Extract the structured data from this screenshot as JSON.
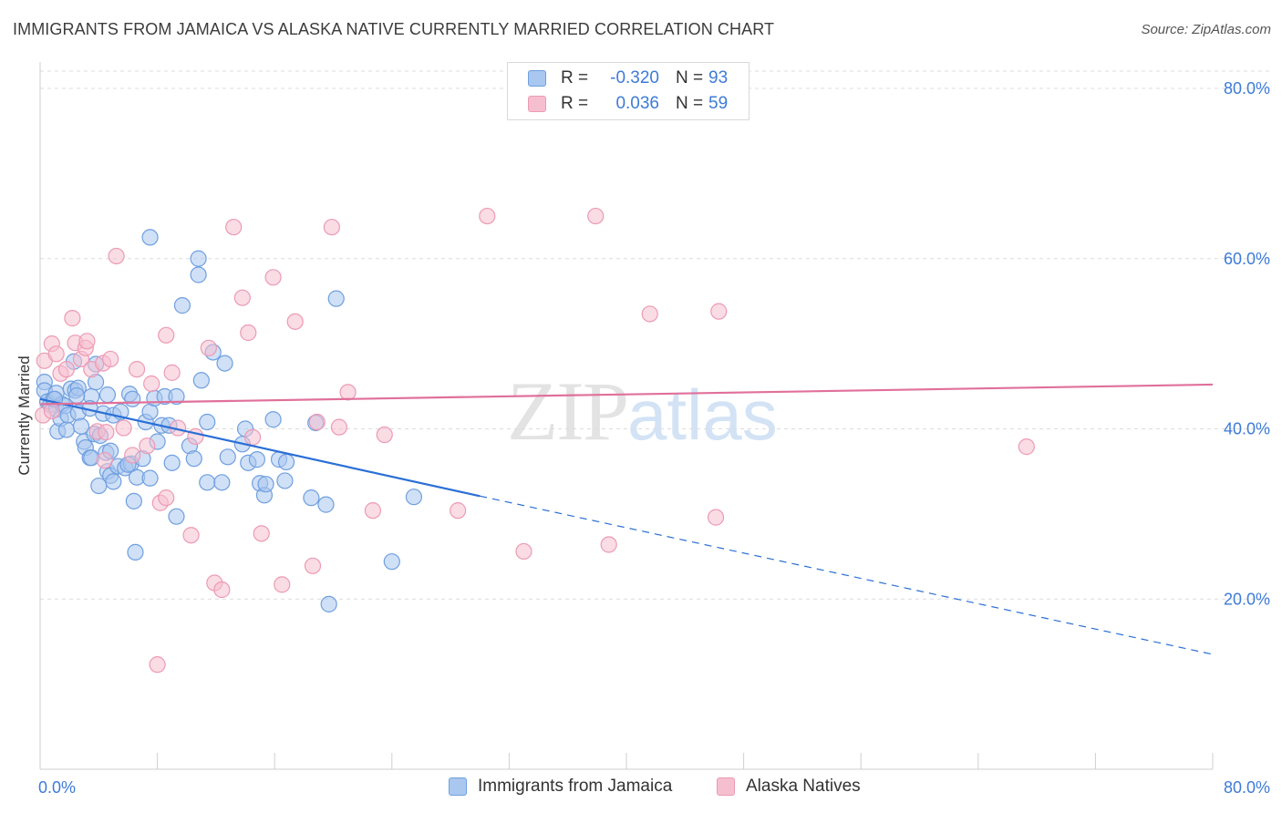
{
  "title": "IMMIGRANTS FROM JAMAICA VS ALASKA NATIVE CURRENTLY MARRIED CORRELATION CHART",
  "source": "Source: ZipAtlas.com",
  "watermark": {
    "zip": "ZIP",
    "atlas": "atlas"
  },
  "legend": {
    "rows": [
      {
        "r_label": "R =",
        "r_value": "-0.320",
        "n_label": "N =",
        "n_value": "93"
      },
      {
        "r_label": "R =",
        "r_value": "0.036",
        "n_label": "N =",
        "n_value": "59"
      }
    ]
  },
  "colors": {
    "blue_fill": "#a9c7ef",
    "blue_stroke": "#6f9fe0",
    "blue_line": "#2a6fd6",
    "pink_fill": "#f6bfd0",
    "pink_stroke": "#ec9ab5",
    "pink_line": "#e0709a",
    "grid": "#dcdcdc",
    "axis_text": "#3d7bd8"
  },
  "chart_data": {
    "type": "scatter",
    "title": "IMMIGRANTS FROM JAMAICA VS ALASKA NATIVE CURRENTLY MARRIED CORRELATION CHART",
    "xlabel": "",
    "ylabel": "Currently Married",
    "xlim": [
      0,
      80
    ],
    "ylim": [
      0,
      80
    ],
    "x_tick_labels": [
      "0.0%",
      "80.0%"
    ],
    "y_ticks": [
      20,
      40,
      60,
      80
    ],
    "y_tick_labels": [
      "20.0%",
      "40.0%",
      "60.0%",
      "80.0%"
    ],
    "series": [
      {
        "name": "Immigrants from Jamaica",
        "color": "#a9c7ef",
        "trend": {
          "x0": 0,
          "y0": 43.5,
          "x1": 30,
          "y1": 32.1,
          "dash_to_x": 80,
          "dash_to_y": 13.5
        },
        "points": [
          [
            0.3,
            45.5
          ],
          [
            0.3,
            44.5
          ],
          [
            0.5,
            43.2
          ],
          [
            0.7,
            42.8
          ],
          [
            0.9,
            43.5
          ],
          [
            1.1,
            42.3
          ],
          [
            1.1,
            44.2
          ],
          [
            1.2,
            39.7
          ],
          [
            1.4,
            41.2
          ],
          [
            1.5,
            42.9
          ],
          [
            1.7,
            42.7
          ],
          [
            1.8,
            39.9
          ],
          [
            1.9,
            41.6
          ],
          [
            2.1,
            44.7
          ],
          [
            2.3,
            47.9
          ],
          [
            2.4,
            44.5
          ],
          [
            2.6,
            41.9
          ],
          [
            2.6,
            44.8
          ],
          [
            2.8,
            40.3
          ],
          [
            3.0,
            38.5
          ],
          [
            3.1,
            37.8
          ],
          [
            3.4,
            36.6
          ],
          [
            3.5,
            43.8
          ],
          [
            3.5,
            36.6
          ],
          [
            3.8,
            47.6
          ],
          [
            3.7,
            39.4
          ],
          [
            3.8,
            45.5
          ],
          [
            4.0,
            33.3
          ],
          [
            4.1,
            39.2
          ],
          [
            4.3,
            41.8
          ],
          [
            4.5,
            37.2
          ],
          [
            4.6,
            35.0
          ],
          [
            4.6,
            44.0
          ],
          [
            4.8,
            34.5
          ],
          [
            5.0,
            41.6
          ],
          [
            5.3,
            35.6
          ],
          [
            5.5,
            42.0
          ],
          [
            5.8,
            35.4
          ],
          [
            6.1,
            44.1
          ],
          [
            6.3,
            43.5
          ],
          [
            6.6,
            34.3
          ],
          [
            6.4,
            31.5
          ],
          [
            6.2,
            35.9
          ],
          [
            6.5,
            25.5
          ],
          [
            7.5,
            62.5
          ],
          [
            7.5,
            34.2
          ],
          [
            7.2,
            40.8
          ],
          [
            7.5,
            42.0
          ],
          [
            7.8,
            43.6
          ],
          [
            8.3,
            40.4
          ],
          [
            8.5,
            43.8
          ],
          [
            8.8,
            40.4
          ],
          [
            9.3,
            29.7
          ],
          [
            9.7,
            54.5
          ],
          [
            9.3,
            43.8
          ],
          [
            10.2,
            38.0
          ],
          [
            10.8,
            60.0
          ],
          [
            10.8,
            58.1
          ],
          [
            11.0,
            45.7
          ],
          [
            11.4,
            33.7
          ],
          [
            11.4,
            40.8
          ],
          [
            11.8,
            49.0
          ],
          [
            12.4,
            33.7
          ],
          [
            12.6,
            47.7
          ],
          [
            12.8,
            36.7
          ],
          [
            13.8,
            38.2
          ],
          [
            14.0,
            40.0
          ],
          [
            14.2,
            36.0
          ],
          [
            14.8,
            36.4
          ],
          [
            15.0,
            33.6
          ],
          [
            15.3,
            32.2
          ],
          [
            15.4,
            33.5
          ],
          [
            15.9,
            41.1
          ],
          [
            16.3,
            36.4
          ],
          [
            16.7,
            33.9
          ],
          [
            16.8,
            36.1
          ],
          [
            18.5,
            31.9
          ],
          [
            18.8,
            40.7
          ],
          [
            19.5,
            31.1
          ],
          [
            19.7,
            19.4
          ],
          [
            20.2,
            55.3
          ],
          [
            24.0,
            24.4
          ],
          [
            25.5,
            32.0
          ],
          [
            1.0,
            43.5
          ],
          [
            2.5,
            43.9
          ],
          [
            3.4,
            42.4
          ],
          [
            4.8,
            37.4
          ],
          [
            6.0,
            35.8
          ],
          [
            7.0,
            36.5
          ],
          [
            8.0,
            38.5
          ],
          [
            9.0,
            36.0
          ],
          [
            5.0,
            33.8
          ],
          [
            10.5,
            36.5
          ]
        ]
      },
      {
        "name": "Alaska Natives",
        "color": "#f6bfd0",
        "trend": {
          "x0": 0,
          "y0": 42.9,
          "x1": 80,
          "y1": 45.2
        },
        "points": [
          [
            0.2,
            41.6
          ],
          [
            0.3,
            48.0
          ],
          [
            0.8,
            50.0
          ],
          [
            0.8,
            42.1
          ],
          [
            1.1,
            48.8
          ],
          [
            1.4,
            46.5
          ],
          [
            1.8,
            47.0
          ],
          [
            2.2,
            53.0
          ],
          [
            2.4,
            50.1
          ],
          [
            2.8,
            48.2
          ],
          [
            3.1,
            49.5
          ],
          [
            3.2,
            50.3
          ],
          [
            3.5,
            47.0
          ],
          [
            3.9,
            39.7
          ],
          [
            4.3,
            47.7
          ],
          [
            4.4,
            36.3
          ],
          [
            4.5,
            39.6
          ],
          [
            4.8,
            48.2
          ],
          [
            5.2,
            60.3
          ],
          [
            5.7,
            40.1
          ],
          [
            6.3,
            36.9
          ],
          [
            6.6,
            47.0
          ],
          [
            7.3,
            38.0
          ],
          [
            7.6,
            45.3
          ],
          [
            8.0,
            12.3
          ],
          [
            8.2,
            31.3
          ],
          [
            8.6,
            31.9
          ],
          [
            8.6,
            51.0
          ],
          [
            9.0,
            46.6
          ],
          [
            9.4,
            40.1
          ],
          [
            10.3,
            27.5
          ],
          [
            10.6,
            39.1
          ],
          [
            11.5,
            49.5
          ],
          [
            11.9,
            21.9
          ],
          [
            12.4,
            21.1
          ],
          [
            13.2,
            63.7
          ],
          [
            13.8,
            55.4
          ],
          [
            14.2,
            51.3
          ],
          [
            14.5,
            39.0
          ],
          [
            15.1,
            27.7
          ],
          [
            15.9,
            57.8
          ],
          [
            16.5,
            21.7
          ],
          [
            17.4,
            52.6
          ],
          [
            18.6,
            23.9
          ],
          [
            18.9,
            40.8
          ],
          [
            19.9,
            63.7
          ],
          [
            20.4,
            40.2
          ],
          [
            21.0,
            44.3
          ],
          [
            22.7,
            30.4
          ],
          [
            23.5,
            39.3
          ],
          [
            28.5,
            30.4
          ],
          [
            30.5,
            65.0
          ],
          [
            33.0,
            25.6
          ],
          [
            37.9,
            65.0
          ],
          [
            38.8,
            26.4
          ],
          [
            41.6,
            53.5
          ],
          [
            46.1,
            29.6
          ],
          [
            46.3,
            53.8
          ],
          [
            67.3,
            37.9
          ]
        ]
      }
    ]
  },
  "bottom_legend": [
    {
      "label": "Immigrants from Jamaica"
    },
    {
      "label": "Alaska Natives"
    }
  ]
}
